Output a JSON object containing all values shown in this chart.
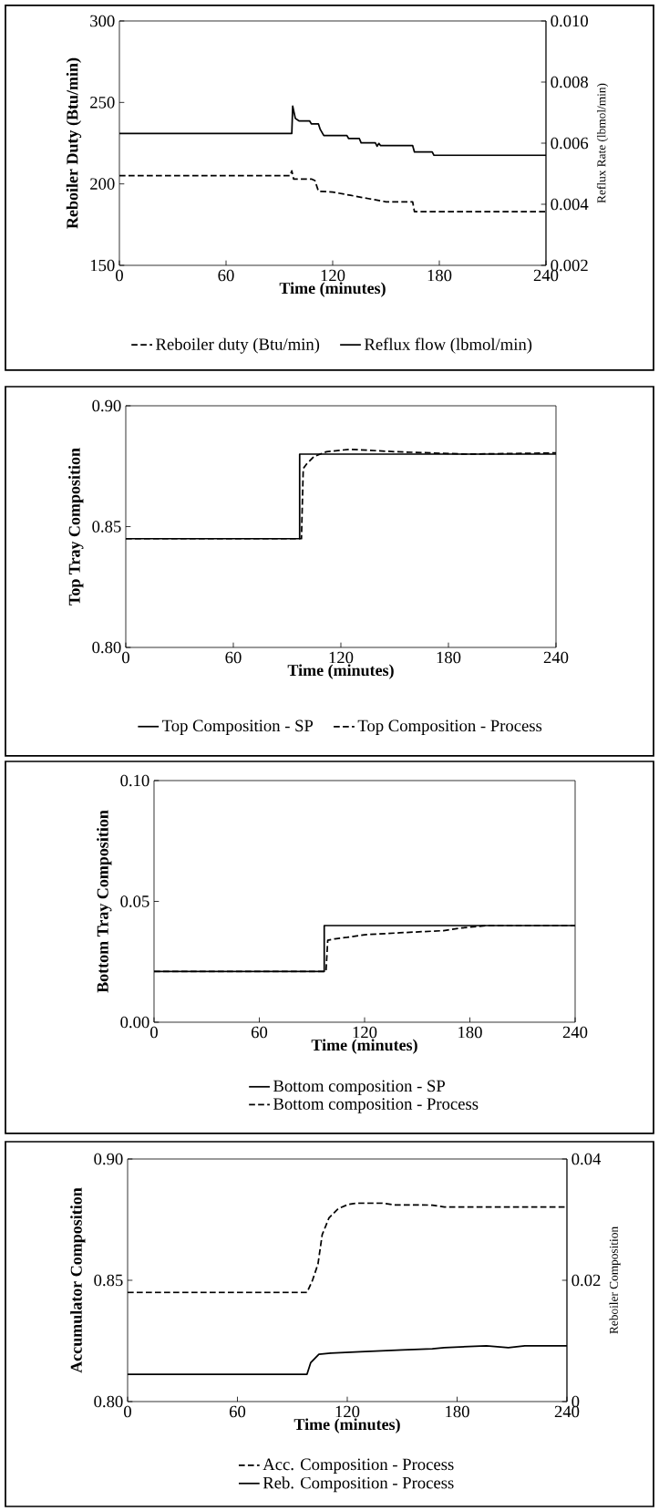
{
  "chart_data": [
    {
      "type": "line",
      "xlabel": "Time (minutes)",
      "ylabel": "Reboiler Duty (Btu/min)",
      "y2label": "Reflux Rate (lbmol/min)",
      "xlim": [
        0,
        240
      ],
      "xticks": [
        0,
        60,
        120,
        180,
        240
      ],
      "ylim": [
        150,
        300
      ],
      "yticks": [
        150,
        200,
        250,
        300
      ],
      "y2lim": [
        0.002,
        0.01
      ],
      "y2ticks": [
        0.002,
        0.004,
        0.006,
        0.008,
        {
          "value": 0.01,
          "label": "0.010"
        }
      ],
      "legend": "bottom",
      "series": [
        {
          "name": "Reboiler duty (Btu/min)",
          "color": "#000000",
          "line_style": "dashed",
          "x": [
            0,
            96,
            97,
            98,
            108,
            110,
            112,
            120,
            130,
            140,
            150,
            165,
            166,
            240
          ],
          "values": [
            205,
            205,
            208,
            203,
            203,
            202,
            195.5,
            195,
            193,
            191,
            189,
            189,
            183,
            183
          ]
        },
        {
          "name": "Reflux flow (lbmol/min)",
          "color": "#000000",
          "line_style": "solid",
          "axis": "y2",
          "x": [
            0,
            97,
            97.5,
            99,
            101,
            107,
            108,
            112,
            113,
            115,
            128,
            129,
            135,
            136,
            144,
            145,
            146,
            147,
            165,
            166,
            176,
            177,
            240
          ],
          "values": [
            0.00632,
            0.00632,
            0.00721,
            0.00681,
            0.00673,
            0.00673,
            0.00663,
            0.00663,
            0.00645,
            0.00625,
            0.00625,
            0.00615,
            0.00615,
            0.00601,
            0.00601,
            0.0059,
            0.00599,
            0.00592,
            0.00592,
            0.00571,
            0.00571,
            0.0056,
            0.0056
          ]
        }
      ]
    },
    {
      "type": "line",
      "xlabel": "Time (minutes)",
      "ylabel": "Top Tray Composition",
      "xlim": [
        0,
        240
      ],
      "xticks": [
        0,
        60,
        120,
        180,
        240
      ],
      "ylim": [
        0.8,
        0.9
      ],
      "yticks": [
        {
          "value": 0.8,
          "label": "0.80"
        },
        0.85,
        {
          "value": 0.9,
          "label": "0.90"
        }
      ],
      "legend": "bottom",
      "series": [
        {
          "name": "Top Composition - SP",
          "color": "#000000",
          "line_style": "solid",
          "x": [
            0,
            97,
            97,
            240
          ],
          "values": [
            0.845,
            0.845,
            0.88,
            0.88
          ]
        },
        {
          "name": "Top Composition - Process",
          "color": "#000000",
          "line_style": "dashed",
          "x": [
            0,
            98,
            99,
            101,
            105,
            112,
            125,
            150,
            170,
            190,
            240
          ],
          "values": [
            0.845,
            0.845,
            0.874,
            0.876,
            0.879,
            0.881,
            0.882,
            0.881,
            0.8805,
            0.88,
            0.8805
          ]
        }
      ]
    },
    {
      "type": "line",
      "xlabel": "Time (minutes)",
      "ylabel": "Bottom Tray Composition",
      "xlim": [
        0,
        240
      ],
      "xticks": [
        0,
        60,
        120,
        180,
        240
      ],
      "ylim": [
        0,
        0.1
      ],
      "yticks": [
        {
          "value": 0,
          "label": "0.00"
        },
        0.05,
        {
          "value": 0.1,
          "label": "0.10"
        }
      ],
      "legend": "bottom",
      "series": [
        {
          "name": "Bottom composition - SP",
          "color": "#000000",
          "line_style": "solid",
          "x": [
            0,
            97,
            97,
            240
          ],
          "values": [
            0.021,
            0.021,
            0.04,
            0.04
          ]
        },
        {
          "name": "Bottom composition - Process",
          "color": "#000000",
          "line_style": "dashed",
          "x": [
            0,
            98,
            99,
            103,
            110,
            120,
            140,
            165,
            175,
            190,
            240
          ],
          "values": [
            0.021,
            0.021,
            0.0339,
            0.0345,
            0.0351,
            0.0362,
            0.037,
            0.0379,
            0.039,
            0.04,
            0.04
          ]
        }
      ]
    },
    {
      "type": "line",
      "xlabel": "Time (minutes)",
      "ylabel": "Accumulator Composition",
      "y2label": "Reboiler Composition",
      "xlim": [
        0,
        240
      ],
      "xticks": [
        0,
        60,
        120,
        180,
        240
      ],
      "ylim": [
        0.8,
        0.9
      ],
      "yticks": [
        {
          "value": 0.8,
          "label": "0.80"
        },
        0.85,
        {
          "value": 0.9,
          "label": "0.90"
        }
      ],
      "y2lim": [
        0,
        0.04
      ],
      "y2ticks": [
        0,
        0.02,
        0.04
      ],
      "legend": "bottom",
      "series": [
        {
          "name": "Acc. Composition - Process",
          "color": "#000000",
          "line_style": "dashed",
          "x": [
            0,
            98,
            101,
            104,
            106.3,
            110,
            115,
            120.6,
            125,
            139,
            146,
            166.5,
            173,
            240
          ],
          "values": [
            0.845,
            0.845,
            0.85,
            0.8567,
            0.8688,
            0.8757,
            0.8795,
            0.8813,
            0.8818,
            0.8818,
            0.8811,
            0.881,
            0.8802,
            0.8802
          ]
        },
        {
          "name": "Reb. Composition - Process",
          "color": "#000000",
          "line_style": "solid",
          "axis": "y2",
          "x": [
            0,
            98,
            100,
            104.5,
            111,
            127,
            150,
            166.5,
            173,
            196,
            208,
            217,
            240
          ],
          "values": [
            0.0045,
            0.0045,
            0.0064,
            0.0078,
            0.008,
            0.0082,
            0.0085,
            0.0087,
            0.0089,
            0.0092,
            0.0089,
            0.0092,
            0.0092
          ]
        }
      ]
    }
  ]
}
